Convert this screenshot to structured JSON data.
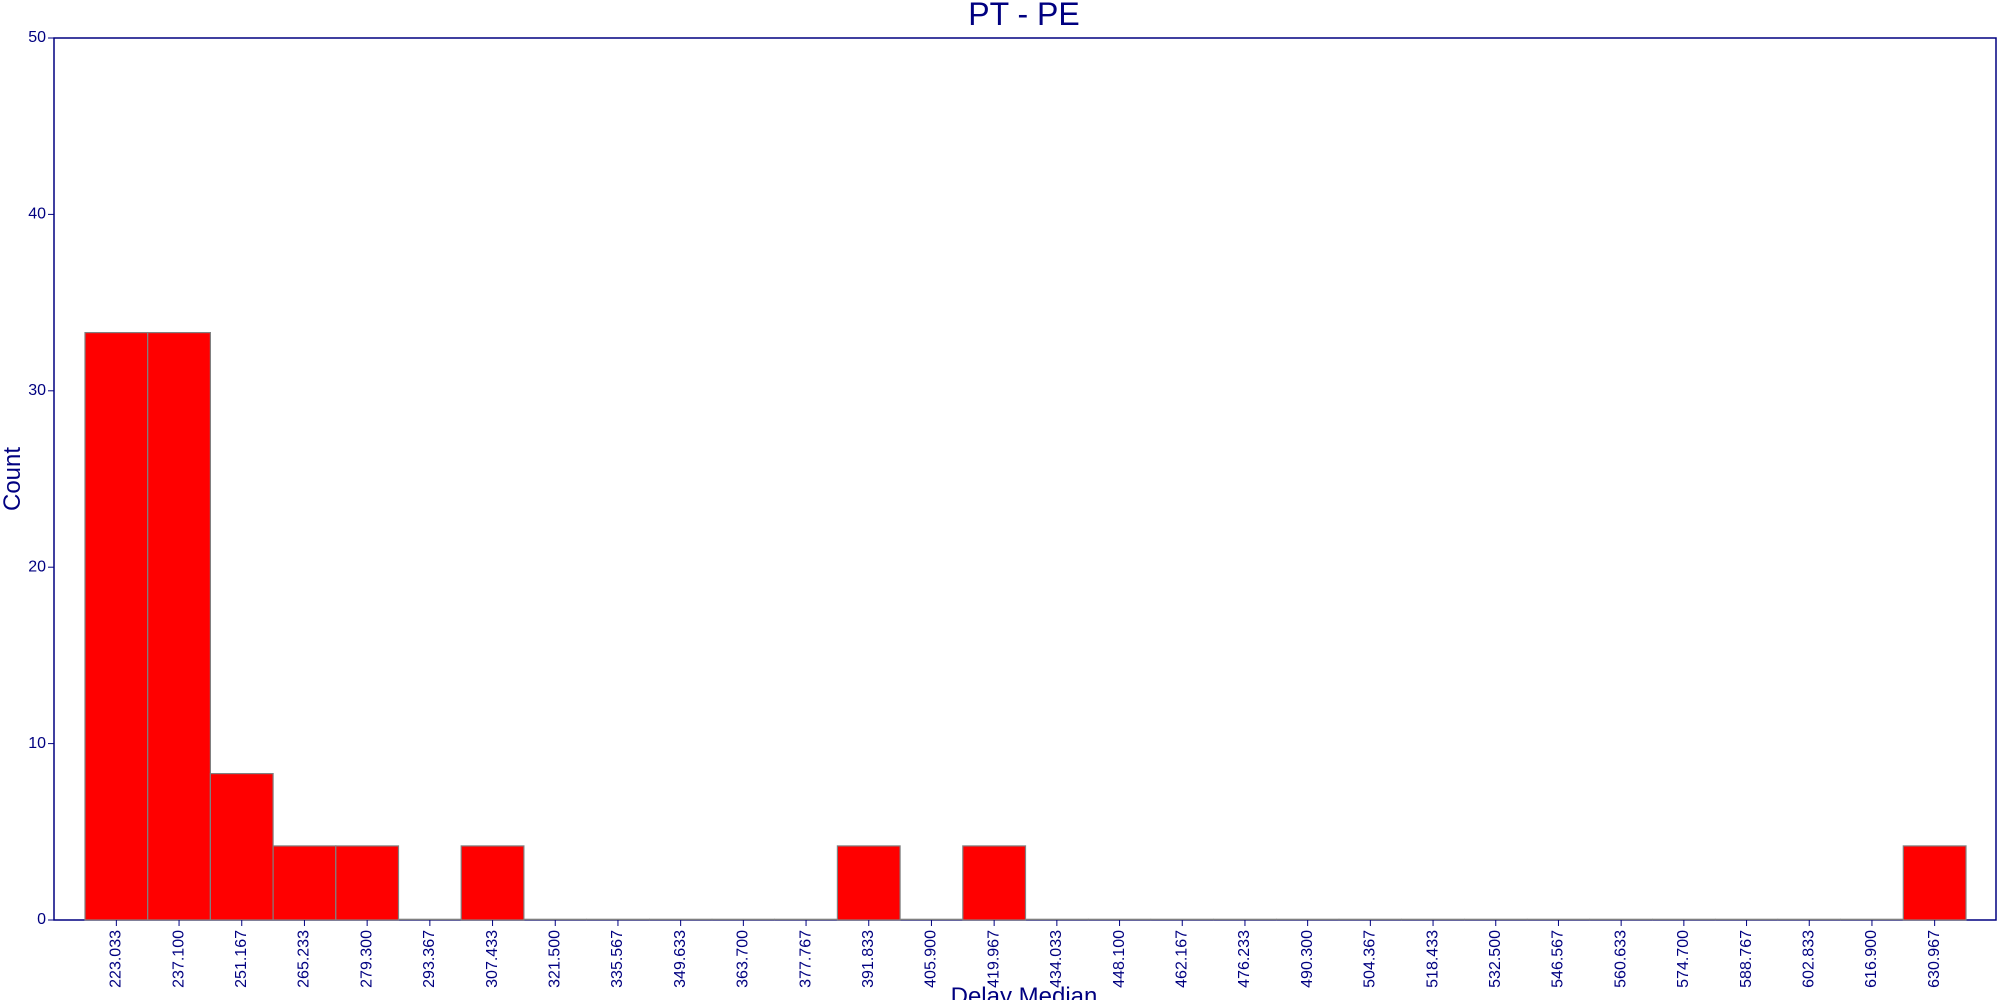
{
  "chart_data": {
    "type": "bar",
    "title": "PT - PE",
    "xlabel": "Delay Median",
    "ylabel": "Count",
    "ylim": [
      0,
      50
    ],
    "yticks": [
      "0",
      "10",
      "20",
      "30",
      "40",
      "50"
    ],
    "categories": [
      "223.033",
      "237.100",
      "251.167",
      "265.233",
      "279.300",
      "293.367",
      "307.433",
      "321.500",
      "335.567",
      "349.633",
      "363.700",
      "377.767",
      "391.833",
      "405.900",
      "419.967",
      "434.033",
      "448.100",
      "462.167",
      "476.233",
      "490.300",
      "504.367",
      "518.433",
      "532.500",
      "546.567",
      "560.633",
      "574.700",
      "588.767",
      "602.833",
      "616.900",
      "630.967"
    ],
    "values": [
      33.3,
      33.3,
      8.3,
      4.2,
      4.2,
      0,
      4.2,
      0,
      0,
      0,
      0,
      0,
      4.2,
      0,
      4.2,
      0,
      0,
      0,
      0,
      0,
      0,
      0,
      0,
      0,
      0,
      0,
      0,
      0,
      0,
      4.2
    ],
    "grid": false,
    "colors": {
      "bar_fill": "#ff0000",
      "bar_edge": "#808080",
      "axis": "#000080",
      "text": "#000080"
    }
  }
}
